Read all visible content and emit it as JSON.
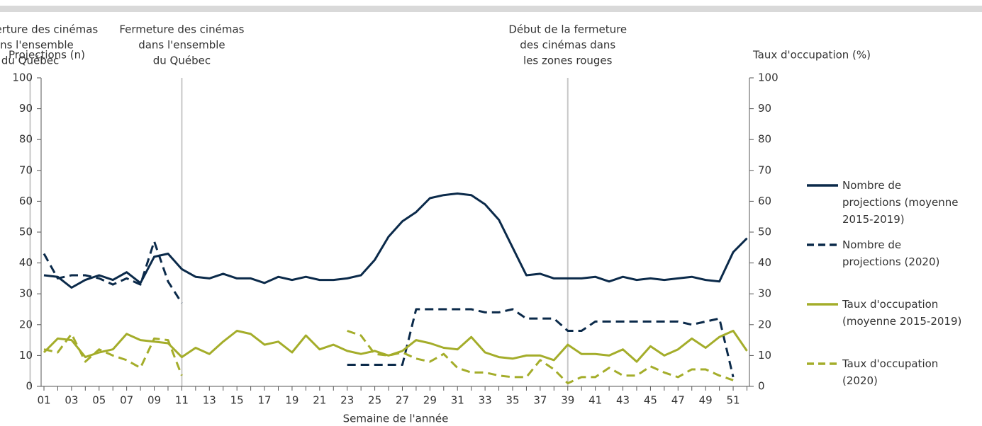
{
  "chart_data": {
    "type": "line",
    "xlabel": "Semaine de l'année",
    "ylabel": "Projections (n)",
    "y2label": "Taux d'occupation (%)",
    "categories": [
      "01",
      null,
      "03",
      null,
      "05",
      null,
      "07",
      null,
      "09",
      null,
      "11",
      null,
      "13",
      null,
      "15",
      null,
      "17",
      null,
      "19",
      null,
      "21",
      null,
      "23",
      null,
      "25",
      null,
      "27",
      null,
      "29",
      null,
      "31",
      null,
      "33",
      null,
      "35",
      null,
      "37",
      null,
      "39",
      null,
      "41",
      null,
      "43",
      null,
      "45",
      null,
      "47",
      null,
      "49",
      null,
      "51",
      null
    ],
    "ylim": [
      0,
      100
    ],
    "yticks": [
      0,
      10,
      20,
      30,
      40,
      50,
      60,
      70,
      80,
      90,
      100
    ],
    "y2lim": [
      0,
      100
    ],
    "y2ticks": [
      0,
      10,
      20,
      30,
      40,
      50,
      60,
      70,
      80,
      90,
      100
    ],
    "annotations": [
      {
        "at": "11",
        "text": [
          "Fermeture des cinémas",
          "dans l'ensemble",
          "du Québec"
        ]
      },
      {
        "at": "26",
        "text": [
          "Réouverture des cinémas",
          "dans l'ensemble",
          "du Québec"
        ]
      },
      {
        "at": "39",
        "text": [
          "Début de la fermeture",
          "des cinémas dans",
          "les zones rouges"
        ]
      }
    ],
    "series": [
      {
        "name": "Nombre de projections (moyenne 2015-2019)",
        "color": "#0b2a4a",
        "dashed": false,
        "axis": "y",
        "values": [
          36,
          35.5,
          32,
          34.5,
          36,
          34.5,
          37,
          33.5,
          42,
          43,
          38,
          35.5,
          35,
          36.5,
          35,
          35,
          33.5,
          35.5,
          34.5,
          35.5,
          34.5,
          34.5,
          35,
          36,
          41,
          48.5,
          53.5,
          56.5,
          61,
          62,
          62.5,
          62,
          59,
          54,
          45,
          36,
          36.5,
          35,
          35,
          35,
          35.5,
          34,
          35.5,
          34.5,
          35,
          34.5,
          35,
          35.5,
          34.5,
          34,
          43.5,
          48
        ]
      },
      {
        "name": "Nombre de projections (2020)",
        "color": "#0b2a4a",
        "dashed": true,
        "axis": "y",
        "values": [
          43,
          35,
          36,
          36,
          35,
          33,
          35,
          33,
          47,
          34,
          27,
          null,
          null,
          null,
          null,
          null,
          null,
          null,
          null,
          null,
          null,
          null,
          7,
          7,
          7,
          7,
          7,
          25,
          25,
          25,
          25,
          25,
          24,
          24,
          25,
          22,
          22,
          22,
          18,
          18,
          21,
          21,
          21,
          21,
          21,
          21,
          21,
          20,
          21,
          22,
          3,
          null
        ]
      },
      {
        "name": "Taux d'occupation (moyenne 2015-2019)",
        "color": "#a4ad2a",
        "dashed": false,
        "axis": "y2",
        "values": [
          11,
          15.5,
          15,
          9.5,
          11,
          12,
          17,
          15,
          14.5,
          14,
          9.5,
          12.5,
          10.5,
          14.5,
          18,
          17,
          13.5,
          14.5,
          11,
          16.5,
          12,
          13.5,
          11.5,
          10.5,
          11.5,
          10,
          11.5,
          15,
          14,
          12.5,
          12,
          16,
          11,
          9.5,
          9,
          10,
          10,
          8.5,
          13.5,
          10.5,
          10.5,
          10,
          12,
          8,
          13,
          10,
          12,
          15.5,
          12.5,
          16,
          18,
          11.5
        ]
      },
      {
        "name": "Taux d'occupation (2020)",
        "color": "#a4ad2a",
        "dashed": true,
        "axis": "y2",
        "values": [
          12,
          11,
          17,
          8,
          12,
          10,
          8.5,
          6,
          15.5,
          15,
          3.5,
          null,
          null,
          null,
          null,
          null,
          null,
          null,
          null,
          null,
          null,
          null,
          18,
          16.5,
          10.5,
          10,
          11,
          9,
          8,
          10.5,
          6,
          4.5,
          4.5,
          3.5,
          3,
          3,
          8.5,
          5.5,
          1,
          3,
          3,
          6,
          3.5,
          3.5,
          6.5,
          4.5,
          3,
          5.5,
          5.5,
          3.5,
          2,
          null
        ]
      }
    ]
  }
}
